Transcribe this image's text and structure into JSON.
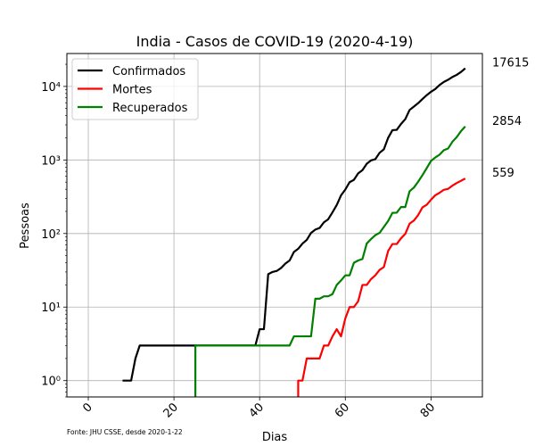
{
  "chart_data": {
    "type": "line",
    "title": "India - Casos de COVID-19 (2020-4-19)",
    "xlabel": "Dias",
    "ylabel": "Pessoas",
    "yscale": "log",
    "xlim": [
      -5,
      92
    ],
    "ylim": [
      0.6,
      28000
    ],
    "x_ticks": [
      0,
      20,
      40,
      60,
      80
    ],
    "y_ticks": [
      {
        "value": 1,
        "label": "10⁰"
      },
      {
        "value": 10,
        "label": "10¹"
      },
      {
        "value": 100,
        "label": "10²"
      },
      {
        "value": 1000,
        "label": "10³"
      },
      {
        "value": 10000,
        "label": "10⁴"
      }
    ],
    "grid": true,
    "legend_position": "upper-left",
    "footnote": "Fonte: JHU CSSE, desde 2020-1-22",
    "series": [
      {
        "name": "Confirmados",
        "color": "#000000",
        "end_label": "17615",
        "points": [
          [
            8,
            1
          ],
          [
            10,
            1
          ],
          [
            11,
            2
          ],
          [
            12,
            3
          ],
          [
            39,
            3
          ],
          [
            40,
            5
          ],
          [
            41,
            5
          ],
          [
            42,
            28
          ],
          [
            43,
            30
          ],
          [
            44,
            31
          ],
          [
            45,
            34
          ],
          [
            46,
            39
          ],
          [
            47,
            43
          ],
          [
            48,
            56
          ],
          [
            49,
            62
          ],
          [
            50,
            73
          ],
          [
            51,
            82
          ],
          [
            52,
            102
          ],
          [
            53,
            113
          ],
          [
            54,
            119
          ],
          [
            55,
            142
          ],
          [
            56,
            156
          ],
          [
            57,
            194
          ],
          [
            58,
            244
          ],
          [
            59,
            330
          ],
          [
            60,
            396
          ],
          [
            61,
            499
          ],
          [
            62,
            536
          ],
          [
            63,
            657
          ],
          [
            64,
            727
          ],
          [
            65,
            887
          ],
          [
            66,
            987
          ],
          [
            67,
            1024
          ],
          [
            68,
            1251
          ],
          [
            69,
            1397
          ],
          [
            70,
            1998
          ],
          [
            71,
            2543
          ],
          [
            72,
            2567
          ],
          [
            73,
            3082
          ],
          [
            74,
            3588
          ],
          [
            75,
            4778
          ],
          [
            76,
            5311
          ],
          [
            77,
            5916
          ],
          [
            78,
            6725
          ],
          [
            79,
            7598
          ],
          [
            80,
            8446
          ],
          [
            81,
            9205
          ],
          [
            82,
            10453
          ],
          [
            83,
            11487
          ],
          [
            84,
            12322
          ],
          [
            85,
            13430
          ],
          [
            86,
            14352
          ],
          [
            87,
            15722
          ],
          [
            88,
            17615
          ]
        ]
      },
      {
        "name": "Mortes",
        "color": "#ff0000",
        "end_label": "559",
        "points": [
          [
            49,
            0.5
          ],
          [
            49,
            1
          ],
          [
            50,
            1
          ],
          [
            51,
            2
          ],
          [
            54,
            2
          ],
          [
            55,
            3
          ],
          [
            56,
            3
          ],
          [
            57,
            4
          ],
          [
            58,
            5
          ],
          [
            59,
            4
          ],
          [
            60,
            7
          ],
          [
            61,
            10
          ],
          [
            62,
            10
          ],
          [
            63,
            12
          ],
          [
            64,
            20
          ],
          [
            65,
            20
          ],
          [
            66,
            24
          ],
          [
            67,
            27
          ],
          [
            68,
            32
          ],
          [
            69,
            35
          ],
          [
            70,
            58
          ],
          [
            71,
            72
          ],
          [
            72,
            72
          ],
          [
            73,
            86
          ],
          [
            74,
            99
          ],
          [
            75,
            136
          ],
          [
            76,
            150
          ],
          [
            77,
            178
          ],
          [
            78,
            226
          ],
          [
            79,
            246
          ],
          [
            80,
            288
          ],
          [
            81,
            331
          ],
          [
            82,
            358
          ],
          [
            83,
            393
          ],
          [
            84,
            405
          ],
          [
            85,
            448
          ],
          [
            86,
            486
          ],
          [
            87,
            521
          ],
          [
            88,
            559
          ]
        ]
      },
      {
        "name": "Recuperados",
        "color": "#008000",
        "end_label": "2854",
        "points": [
          [
            25,
            0.5
          ],
          [
            25,
            3
          ],
          [
            47,
            3
          ],
          [
            48,
            4
          ],
          [
            52,
            4
          ],
          [
            53,
            13
          ],
          [
            54,
            13
          ],
          [
            55,
            14
          ],
          [
            56,
            14
          ],
          [
            57,
            15
          ],
          [
            58,
            20
          ],
          [
            59,
            23
          ],
          [
            60,
            27
          ],
          [
            61,
            27
          ],
          [
            62,
            40
          ],
          [
            63,
            43
          ],
          [
            64,
            45
          ],
          [
            65,
            73
          ],
          [
            66,
            84
          ],
          [
            67,
            95
          ],
          [
            68,
            102
          ],
          [
            69,
            123
          ],
          [
            70,
            148
          ],
          [
            71,
            191
          ],
          [
            72,
            192
          ],
          [
            73,
            229
          ],
          [
            74,
            229
          ],
          [
            75,
            375
          ],
          [
            76,
            421
          ],
          [
            77,
            506
          ],
          [
            78,
            620
          ],
          [
            79,
            774
          ],
          [
            80,
            969
          ],
          [
            81,
            1080
          ],
          [
            82,
            1181
          ],
          [
            83,
            1359
          ],
          [
            84,
            1432
          ],
          [
            85,
            1768
          ],
          [
            86,
            2041
          ],
          [
            87,
            2463
          ],
          [
            88,
            2854
          ]
        ]
      }
    ]
  }
}
